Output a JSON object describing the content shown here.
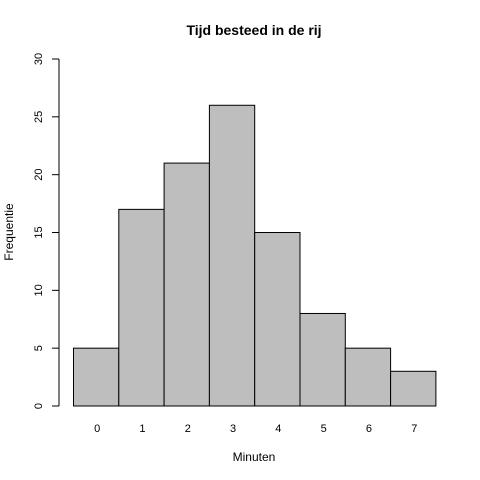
{
  "chart_data": {
    "type": "bar",
    "title": "Tijd besteed in de rij",
    "xlabel": "Minuten",
    "ylabel": "Frequentie",
    "categories": [
      "0",
      "1",
      "2",
      "3",
      "4",
      "5",
      "6",
      "7"
    ],
    "values": [
      5,
      17,
      21,
      26,
      15,
      8,
      5,
      3
    ],
    "ylim": [
      0,
      30
    ],
    "yticks": [
      "0",
      "5",
      "10",
      "15",
      "20",
      "25",
      "30"
    ],
    "grid": false,
    "bar_color": "#bebebe",
    "edge_color": "#000000"
  }
}
